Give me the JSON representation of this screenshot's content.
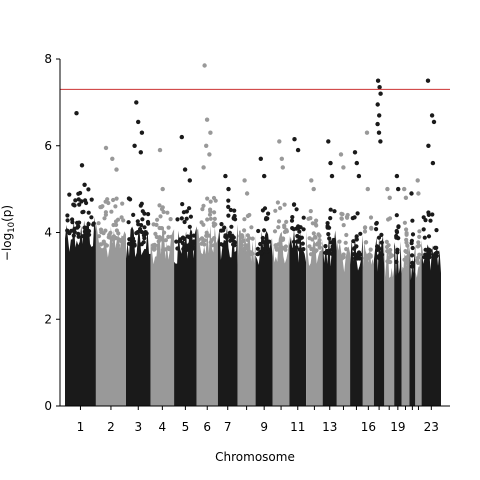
{
  "chart_data": {
    "type": "scatter",
    "subtype": "manhattan",
    "xlabel": "Chromosome",
    "ylabel_base": "−log",
    "ylabel_sub": "10",
    "ylabel_arg": "(p)",
    "ylim": [
      0,
      8
    ],
    "y_ticks": [
      "0",
      "2",
      "4",
      "6",
      "8"
    ],
    "x_tick_labels": [
      "1",
      "2",
      "3",
      "4",
      "5",
      "6",
      "7",
      "9",
      "11",
      "13",
      "16",
      "19",
      "23"
    ],
    "significance_threshold": 7.3,
    "colors": {
      "dark": "#1a1a1a",
      "light": "#999999",
      "threshold": "#cc3333"
    },
    "chromosomes": [
      {
        "chr": "1",
        "label": "1",
        "max": 4.8,
        "peaks": [
          6.75,
          5.55,
          5.1
        ]
      },
      {
        "chr": "2",
        "label": "2",
        "max": 4.6,
        "peaks": [
          5.95,
          5.7,
          5.45
        ]
      },
      {
        "chr": "3",
        "label": "3",
        "max": 4.6,
        "peaks": [
          7.0,
          6.55,
          6.3,
          6.0,
          5.85
        ]
      },
      {
        "chr": "4",
        "label": "4",
        "max": 4.5,
        "peaks": [
          5.9,
          5.0
        ]
      },
      {
        "chr": "5",
        "label": "5",
        "max": 4.5,
        "peaks": [
          6.2,
          5.45,
          5.2
        ]
      },
      {
        "chr": "6",
        "label": "6",
        "max": 4.6,
        "peaks": [
          7.85,
          6.6,
          6.3,
          6.0,
          5.8,
          5.5
        ]
      },
      {
        "chr": "7",
        "label": "7",
        "max": 4.6,
        "peaks": [
          5.3,
          5.0
        ]
      },
      {
        "chr": "8",
        "label": "",
        "max": 4.4,
        "peaks": [
          5.2,
          4.9
        ]
      },
      {
        "chr": "9",
        "label": "9",
        "max": 4.4,
        "peaks": [
          5.7,
          5.3
        ]
      },
      {
        "chr": "10",
        "label": "",
        "max": 4.5,
        "peaks": [
          6.1,
          5.7,
          5.5
        ]
      },
      {
        "chr": "11",
        "label": "11",
        "max": 4.5,
        "peaks": [
          6.15,
          5.9
        ]
      },
      {
        "chr": "12",
        "label": "",
        "max": 4.4,
        "peaks": [
          5.2,
          5.0
        ]
      },
      {
        "chr": "13",
        "label": "13",
        "max": 4.4,
        "peaks": [
          6.1,
          5.6,
          5.3
        ]
      },
      {
        "chr": "14",
        "label": "",
        "max": 4.3,
        "peaks": [
          5.8,
          5.5
        ]
      },
      {
        "chr": "15",
        "label": "",
        "max": 4.3,
        "peaks": [
          5.85,
          5.6,
          5.3
        ]
      },
      {
        "chr": "16",
        "label": "16",
        "max": 4.3,
        "peaks": [
          6.3,
          5.0
        ]
      },
      {
        "chr": "17",
        "label": "",
        "max": 4.3,
        "peaks": [
          7.5,
          7.35,
          7.2,
          6.95,
          6.7,
          6.5,
          6.3,
          6.1
        ]
      },
      {
        "chr": "18",
        "label": "",
        "max": 4.2,
        "peaks": [
          5.0,
          4.8
        ]
      },
      {
        "chr": "19",
        "label": "19",
        "max": 4.2,
        "peaks": [
          5.3,
          5.0
        ]
      },
      {
        "chr": "20",
        "label": "",
        "max": 4.2,
        "peaks": [
          5.0,
          4.8
        ]
      },
      {
        "chr": "21",
        "label": "",
        "max": 4.1,
        "peaks": [
          4.9
        ]
      },
      {
        "chr": "22",
        "label": "",
        "max": 4.2,
        "peaks": [
          5.2,
          4.9
        ]
      },
      {
        "chr": "23",
        "label": "23",
        "max": 4.3,
        "peaks": [
          7.5,
          6.7,
          6.55,
          6.0,
          5.6
        ]
      }
    ]
  }
}
